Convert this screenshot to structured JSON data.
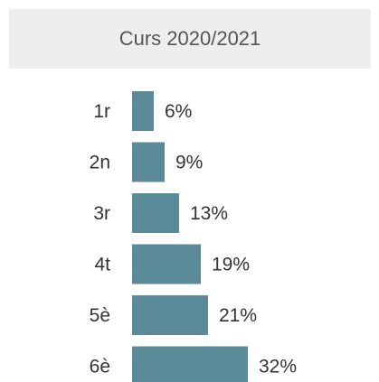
{
  "chart_data": {
    "type": "bar",
    "orientation": "horizontal",
    "title": "Curs 2020/2021",
    "categories": [
      "1r",
      "2n",
      "3r",
      "4t",
      "5è",
      "6è"
    ],
    "values": [
      6,
      9,
      13,
      19,
      21,
      32
    ],
    "value_labels": [
      "6%",
      "9%",
      "13%",
      "19%",
      "21%",
      "32%"
    ],
    "unit": "%",
    "bar_color": "#5b8a99",
    "title_background": "#eeeeee",
    "grid": false,
    "legend": "none"
  }
}
